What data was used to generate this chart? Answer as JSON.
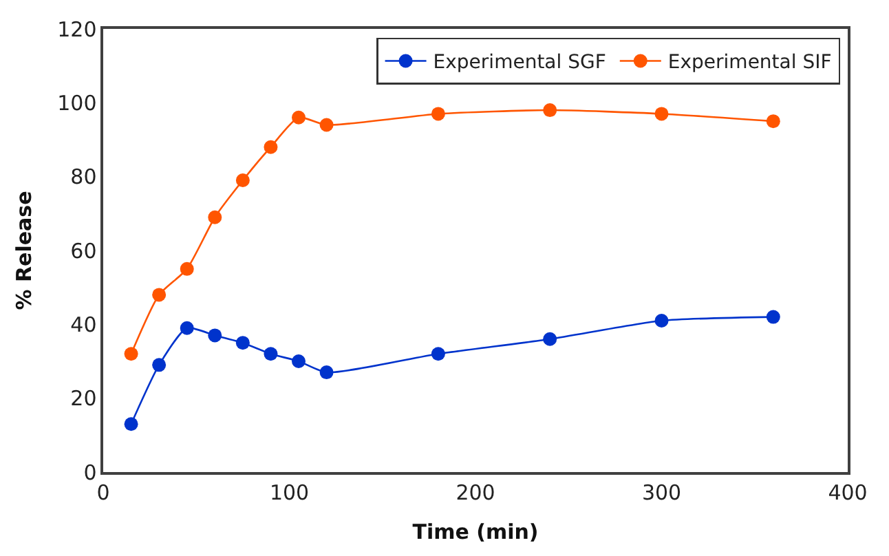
{
  "chart_data": {
    "type": "line",
    "xlabel": "Time (min)",
    "ylabel": "% Release",
    "x": [
      15,
      30,
      45,
      60,
      75,
      90,
      105,
      120,
      180,
      240,
      300,
      360
    ],
    "series": [
      {
        "name": "Experimental SGF",
        "color": "#0033cc",
        "values": [
          13,
          29,
          39,
          37,
          35,
          32,
          30,
          27,
          32,
          36,
          41,
          42
        ]
      },
      {
        "name": "Experimental SIF",
        "color": "#ff5500",
        "values": [
          32,
          48,
          55,
          69,
          79,
          88,
          96,
          94,
          97,
          98,
          97,
          95
        ]
      }
    ],
    "xlim": [
      0,
      400
    ],
    "xticks": [
      0,
      100,
      200,
      300,
      400
    ],
    "ylim": [
      0,
      120
    ],
    "yticks": [
      0,
      20,
      40,
      60,
      80,
      100,
      120
    ],
    "legend": "top right",
    "marker": "circle",
    "line_style": "solid"
  }
}
